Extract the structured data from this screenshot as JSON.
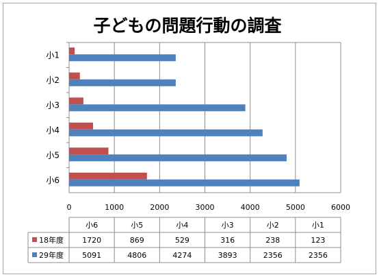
{
  "chart_data": {
    "type": "bar",
    "orientation": "horizontal",
    "title": "子どもの問題行動の調査",
    "categories": [
      "小6",
      "小5",
      "小4",
      "小3",
      "小2",
      "小1"
    ],
    "series": [
      {
        "name": "18年度",
        "values": [
          1720,
          869,
          529,
          316,
          238,
          123
        ],
        "color": "#c0504d"
      },
      {
        "name": "29年度",
        "values": [
          5091,
          4806,
          4274,
          3893,
          2356,
          2356
        ],
        "color": "#4f81bd"
      }
    ],
    "xlim": [
      0,
      6000
    ],
    "xticks": [
      0,
      1000,
      2000,
      3000,
      4000,
      5000,
      6000
    ],
    "grid": true,
    "data_table": true,
    "display_values": {
      "18年度": [
        "1720",
        "869",
        "529",
        "316",
        "238",
        "123"
      ],
      "29年度": [
        "5091",
        "4806",
        "4274",
        "3893",
        "2356",
        "2356"
      ]
    }
  }
}
